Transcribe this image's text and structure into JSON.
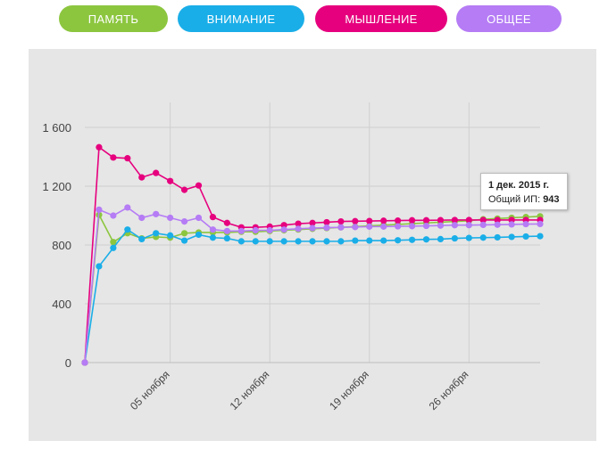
{
  "tabs": [
    {
      "label": "ПАМЯТЬ",
      "color": "#8cc63f"
    },
    {
      "label": "ВНИМАНИЕ",
      "color": "#1aaee8"
    },
    {
      "label": "МЫШЛЕНИЕ",
      "color": "#e6007e"
    },
    {
      "label": "ОБЩЕЕ",
      "color": "#b57cf5"
    }
  ],
  "tooltip": {
    "date": "1 дек. 2015 г.",
    "label": "Общий ИП:",
    "value": "943"
  },
  "chart_data": {
    "type": "line",
    "ylim": [
      0,
      1700
    ],
    "yticks": [
      0,
      400,
      800,
      1200,
      1600
    ],
    "ytick_labels": [
      "0",
      "400",
      "800",
      "1 200",
      "1 600"
    ],
    "x_points": 33,
    "xticks": [
      {
        "index": 6,
        "label": "05 ноября"
      },
      {
        "index": 13,
        "label": "12 ноября"
      },
      {
        "index": 20,
        "label": "19 ноября"
      },
      {
        "index": 27,
        "label": "26 ноября"
      }
    ],
    "grid": true,
    "series": [
      {
        "key": "memory",
        "color": "#8cc63f",
        "values": [
          0,
          1005,
          820,
          880,
          845,
          855,
          850,
          880,
          885,
          885,
          885,
          890,
          890,
          895,
          900,
          905,
          910,
          915,
          920,
          925,
          930,
          935,
          940,
          945,
          950,
          955,
          960,
          965,
          975,
          980,
          985,
          990,
          995
        ]
      },
      {
        "key": "attention",
        "color": "#1aaee8",
        "values": [
          0,
          655,
          780,
          905,
          840,
          880,
          865,
          830,
          870,
          850,
          845,
          825,
          825,
          825,
          825,
          825,
          825,
          825,
          825,
          830,
          830,
          830,
          832,
          835,
          838,
          840,
          845,
          848,
          850,
          852,
          855,
          858,
          860
        ]
      },
      {
        "key": "thinking",
        "color": "#e6007e",
        "values": [
          0,
          1465,
          1395,
          1390,
          1260,
          1290,
          1235,
          1175,
          1205,
          990,
          950,
          920,
          920,
          925,
          935,
          945,
          950,
          955,
          960,
          962,
          963,
          965,
          966,
          968,
          968,
          969,
          970,
          970,
          970,
          970,
          970,
          970,
          970
        ]
      },
      {
        "key": "overall",
        "color": "#b57cf5",
        "values": [
          0,
          1040,
          1000,
          1055,
          985,
          1010,
          985,
          960,
          985,
          905,
          895,
          895,
          900,
          900,
          905,
          910,
          915,
          918,
          920,
          922,
          925,
          925,
          927,
          928,
          930,
          932,
          935,
          935,
          937,
          938,
          940,
          942,
          943
        ]
      }
    ]
  }
}
